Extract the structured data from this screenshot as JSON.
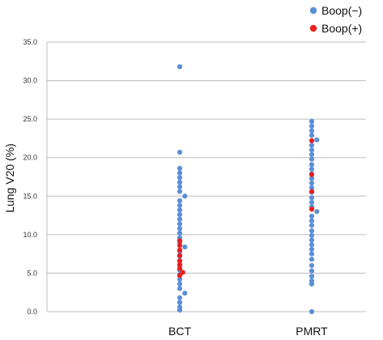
{
  "chart_data": {
    "type": "scatter",
    "title": "",
    "xlabel": "",
    "ylabel": "Lung V20 (%)",
    "ylim": [
      0,
      35
    ],
    "ytick_labels": [
      "0.0",
      "5.0",
      "10.0",
      "15.0",
      "20.0",
      "25.0",
      "30.0",
      "35.0"
    ],
    "categories": [
      "BCT",
      "PMRT"
    ],
    "grid": true,
    "legend_position": "top-right",
    "series": [
      {
        "name": "Boop(−)",
        "color": "#5b8fd6",
        "points": [
          {
            "category": "BCT",
            "values": [
              31.8,
              20.7,
              18.6,
              18.0,
              17.4,
              16.8,
              16.2,
              15.6,
              15.0,
              14.4,
              13.8,
              13.2,
              12.6,
              12.0,
              11.4,
              10.8,
              10.2,
              9.6,
              9.0,
              8.4,
              7.8,
              7.2,
              6.6,
              6.0,
              5.4,
              4.8,
              4.2,
              3.6,
              3.0,
              2.4,
              1.8,
              1.2,
              0.6,
              0.2
            ]
          },
          {
            "category": "PMRT",
            "values": [
              24.7,
              24.1,
              23.5,
              22.9,
              22.3,
              21.6,
              21.0,
              20.4,
              19.8,
              19.1,
              18.5,
              17.9,
              17.3,
              16.7,
              16.1,
              15.5,
              14.8,
              14.2,
              13.6,
              13.0,
              12.4,
              11.8,
              11.2,
              10.5,
              9.9,
              9.3,
              8.7,
              8.1,
              7.5,
              6.8,
              6.0,
              5.3,
              4.6,
              4.0,
              3.6,
              0.0
            ]
          }
        ]
      },
      {
        "name": "Boop(+)",
        "color": "#e8201e",
        "points": [
          {
            "category": "BCT",
            "values": [
              9.2,
              8.6,
              8.0,
              7.3,
              6.6,
              6.1,
              5.6,
              5.1,
              4.7
            ]
          },
          {
            "category": "PMRT",
            "values": [
              22.2,
              17.8,
              15.6,
              13.3
            ]
          }
        ]
      }
    ]
  }
}
